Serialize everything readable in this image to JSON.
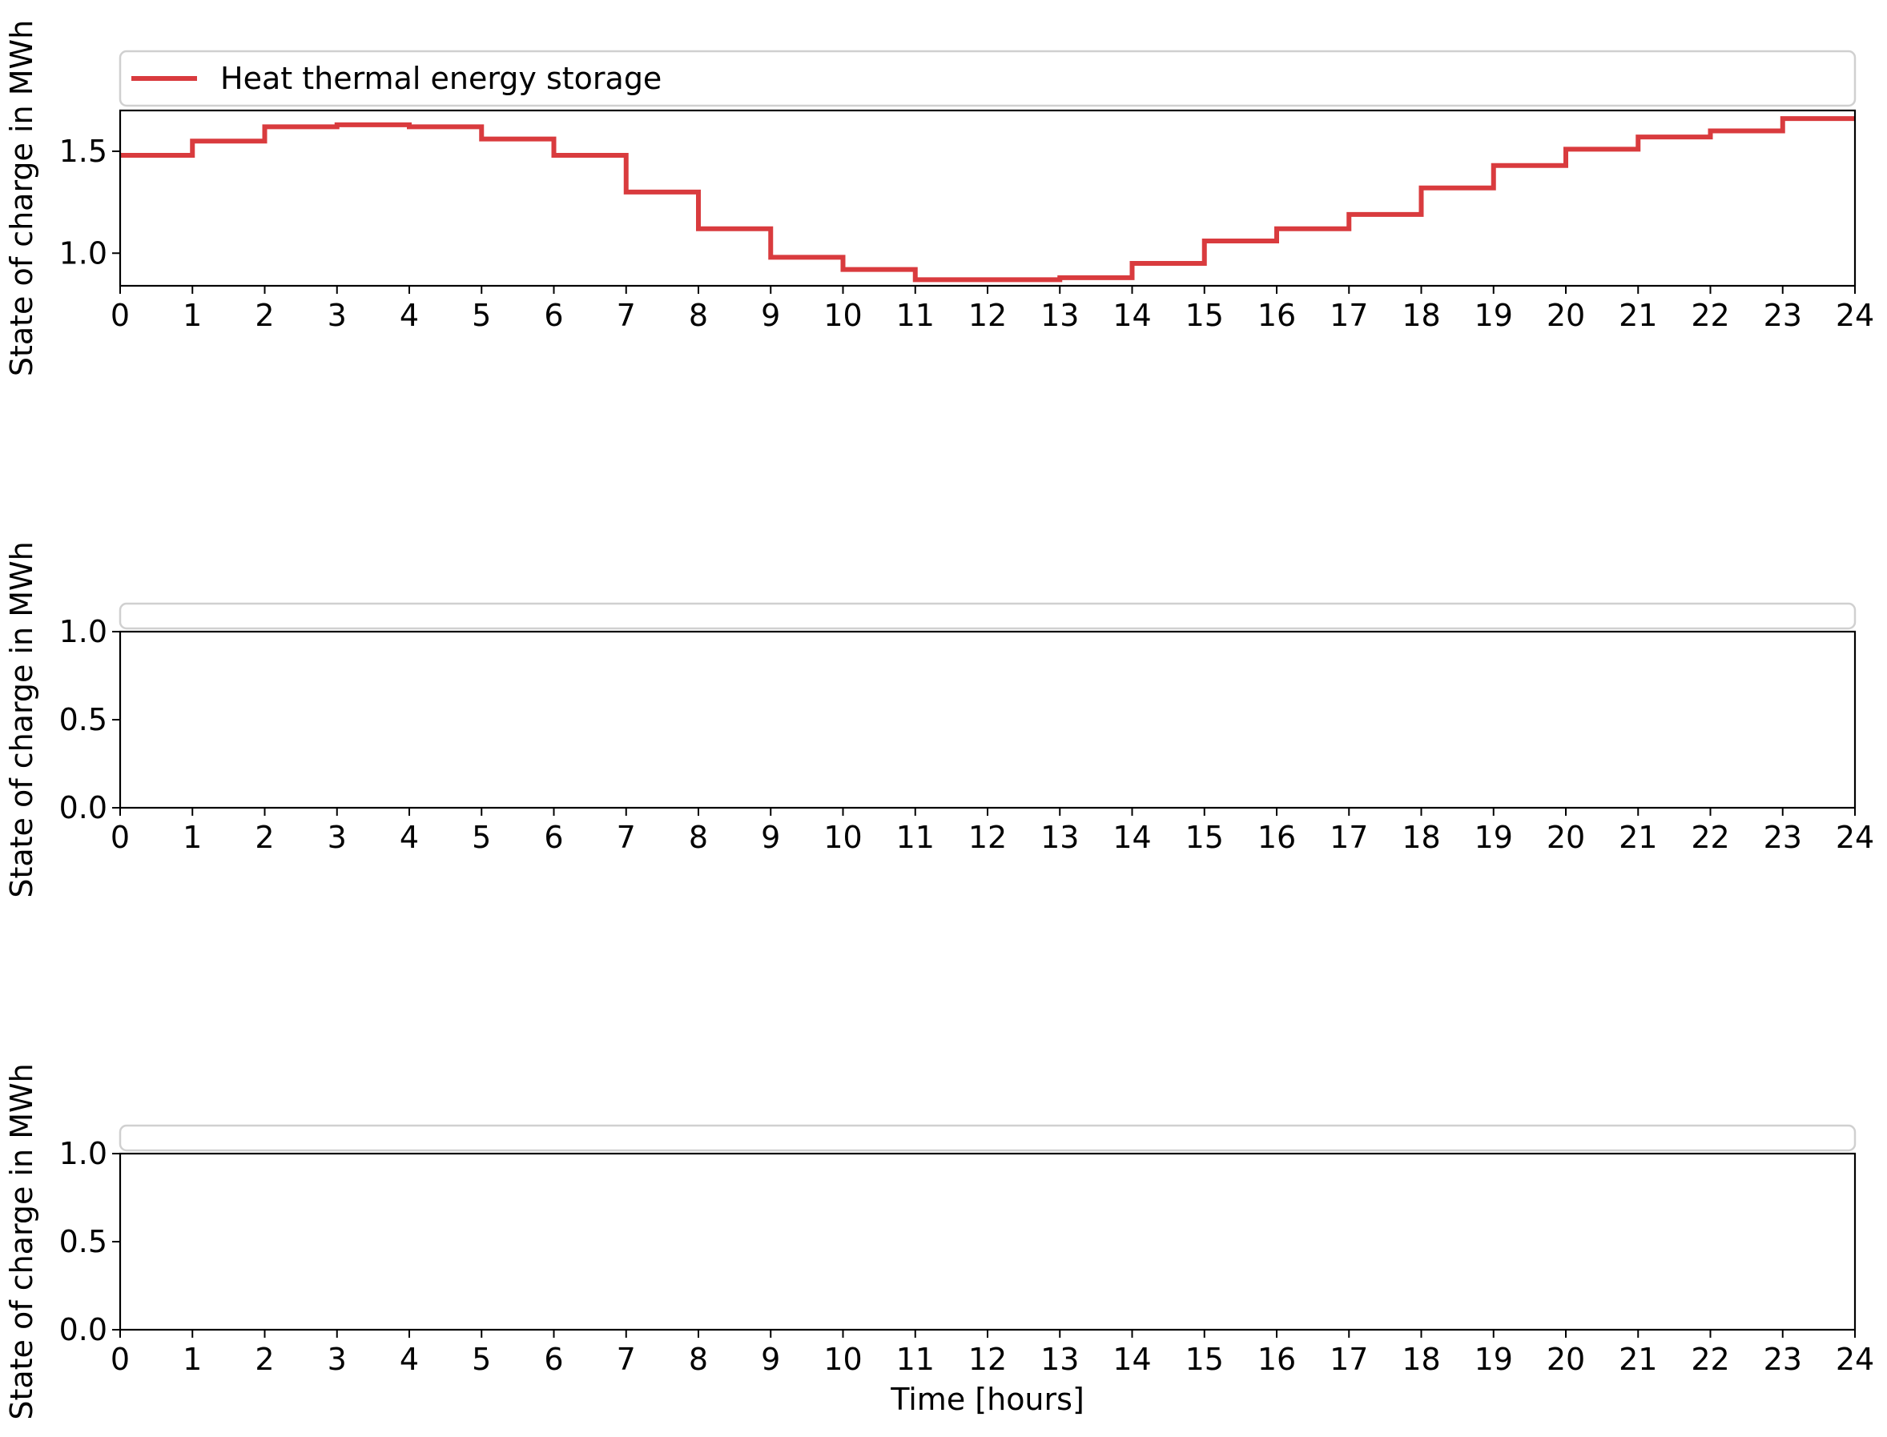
{
  "chart_data": [
    {
      "type": "line",
      "step": "post",
      "legend": {
        "entries": [
          "Heat thermal energy storage"
        ],
        "placement": "top"
      },
      "series": [
        {
          "name": "Heat thermal energy storage",
          "color": "#d93b3e",
          "x": [
            0,
            1,
            2,
            3,
            4,
            5,
            6,
            7,
            8,
            9,
            10,
            11,
            12,
            13,
            14,
            15,
            16,
            17,
            18,
            19,
            20,
            21,
            22,
            23,
            24
          ],
          "values": [
            1.48,
            1.55,
            1.62,
            1.63,
            1.62,
            1.56,
            1.48,
            1.3,
            1.12,
            0.98,
            0.92,
            0.87,
            0.87,
            0.88,
            0.95,
            1.06,
            1.12,
            1.19,
            1.32,
            1.43,
            1.51,
            1.57,
            1.6,
            1.66,
            1.66
          ]
        }
      ],
      "xlim": [
        0,
        24
      ],
      "ylim": [
        0.84,
        1.7
      ],
      "xticks": [
        "0",
        "1",
        "2",
        "3",
        "4",
        "5",
        "6",
        "7",
        "8",
        "9",
        "10",
        "11",
        "12",
        "13",
        "14",
        "15",
        "16",
        "17",
        "18",
        "19",
        "20",
        "21",
        "22",
        "23",
        "24"
      ],
      "yticks": [
        "1.0",
        "1.5"
      ],
      "ytick_values": [
        1.0,
        1.5
      ],
      "xlabel": "",
      "ylabel": "State of charge in MWh",
      "grid": false
    },
    {
      "type": "line",
      "legend": {
        "entries": [],
        "placement": "top"
      },
      "series": [],
      "xlim": [
        0,
        24
      ],
      "ylim": [
        0,
        1
      ],
      "xticks": [
        "0",
        "1",
        "2",
        "3",
        "4",
        "5",
        "6",
        "7",
        "8",
        "9",
        "10",
        "11",
        "12",
        "13",
        "14",
        "15",
        "16",
        "17",
        "18",
        "19",
        "20",
        "21",
        "22",
        "23",
        "24"
      ],
      "yticks": [
        "0.0",
        "0.5",
        "1.0"
      ],
      "ytick_values": [
        0,
        0.5,
        1.0
      ],
      "xlabel": "",
      "ylabel": "State of charge in MWh",
      "grid": false
    },
    {
      "type": "line",
      "legend": {
        "entries": [],
        "placement": "top"
      },
      "series": [],
      "xlim": [
        0,
        24
      ],
      "ylim": [
        0,
        1
      ],
      "xticks": [
        "0",
        "1",
        "2",
        "3",
        "4",
        "5",
        "6",
        "7",
        "8",
        "9",
        "10",
        "11",
        "12",
        "13",
        "14",
        "15",
        "16",
        "17",
        "18",
        "19",
        "20",
        "21",
        "22",
        "23",
        "24"
      ],
      "yticks": [
        "0.0",
        "0.5",
        "1.0"
      ],
      "ytick_values": [
        0,
        0.5,
        1.0
      ],
      "xlabel": "Time [hours]",
      "ylabel": "State of charge in MWh",
      "grid": false
    }
  ]
}
